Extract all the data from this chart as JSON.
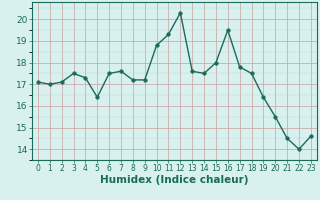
{
  "x": [
    0,
    1,
    2,
    3,
    4,
    5,
    6,
    7,
    8,
    9,
    10,
    11,
    12,
    13,
    14,
    15,
    16,
    17,
    18,
    19,
    20,
    21,
    22,
    23
  ],
  "y": [
    17.1,
    17.0,
    17.1,
    17.5,
    17.3,
    16.4,
    17.5,
    17.6,
    17.2,
    17.2,
    18.8,
    19.3,
    20.3,
    17.6,
    17.5,
    18.0,
    19.5,
    17.8,
    17.5,
    16.4,
    15.5,
    14.5,
    14.0,
    14.6
  ],
  "line_color": "#1a6b5a",
  "marker_color": "#1a6b5a",
  "bg_color": "#d8f0ee",
  "grid_major_color": "#b8d8d4",
  "grid_minor_color": "#c8e4e0",
  "xlabel": "Humidex (Indice chaleur)",
  "ylim": [
    13.5,
    20.8
  ],
  "xlim": [
    -0.5,
    23.5
  ],
  "yticks": [
    14,
    15,
    16,
    17,
    18,
    19,
    20
  ],
  "xticks": [
    0,
    1,
    2,
    3,
    4,
    5,
    6,
    7,
    8,
    9,
    10,
    11,
    12,
    13,
    14,
    15,
    16,
    17,
    18,
    19,
    20,
    21,
    22,
    23
  ],
  "xlabel_fontsize": 7.5,
  "tick_fontsize": 6.5,
  "marker_size": 2.5,
  "line_width": 1.0
}
